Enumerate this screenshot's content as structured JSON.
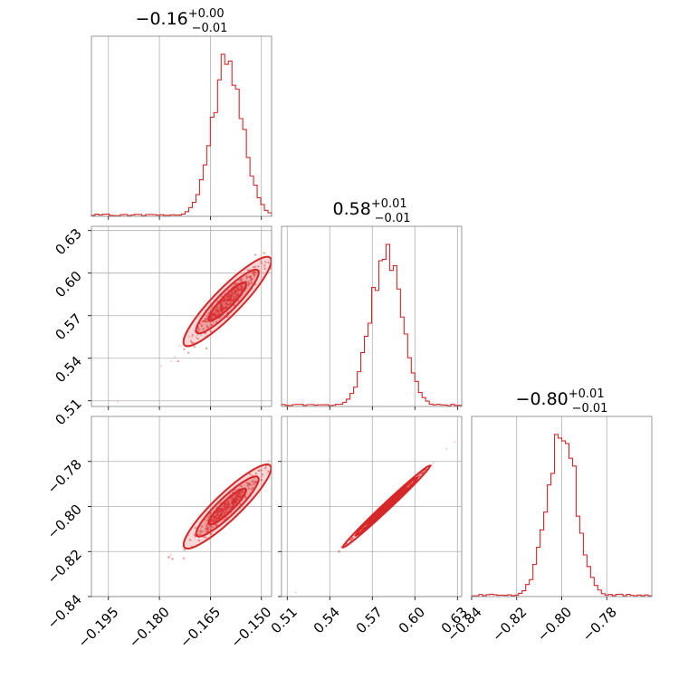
{
  "chart_data": {
    "type": "corner",
    "color": "#d62728",
    "parameters": [
      {
        "title": {
          "median": "−0.16",
          "plus": "+0.00",
          "minus": "−0.01"
        },
        "range": [
          -0.2,
          -0.147
        ],
        "ticks": [
          -0.195,
          -0.18,
          -0.165,
          -0.15
        ],
        "tick_labels": [
          "−0.195",
          "−0.180",
          "−0.165",
          "−0.150"
        ],
        "hist_center": -0.16,
        "hist_sigma": 0.0045
      },
      {
        "title": {
          "median": "0.58",
          "plus": "+0.01",
          "minus": "−0.01"
        },
        "range": [
          0.506,
          0.633
        ],
        "ticks": [
          0.51,
          0.54,
          0.57,
          0.6,
          0.63
        ],
        "tick_labels": [
          "0.51",
          "0.54",
          "0.57",
          "0.60",
          "0.63"
        ],
        "hist_center": 0.58,
        "hist_sigma": 0.011
      },
      {
        "title": {
          "median": "−0.80",
          "plus": "+0.01",
          "minus": "−0.01"
        },
        "range": [
          -0.84,
          -0.76
        ],
        "ticks": [
          -0.84,
          -0.82,
          -0.8,
          -0.78
        ],
        "tick_labels": [
          "−0.84",
          "−0.82",
          "−0.80",
          "−0.78"
        ],
        "hist_center": -0.8,
        "hist_sigma": 0.0065
      }
    ],
    "hist_bins": 50,
    "grid": true
  }
}
